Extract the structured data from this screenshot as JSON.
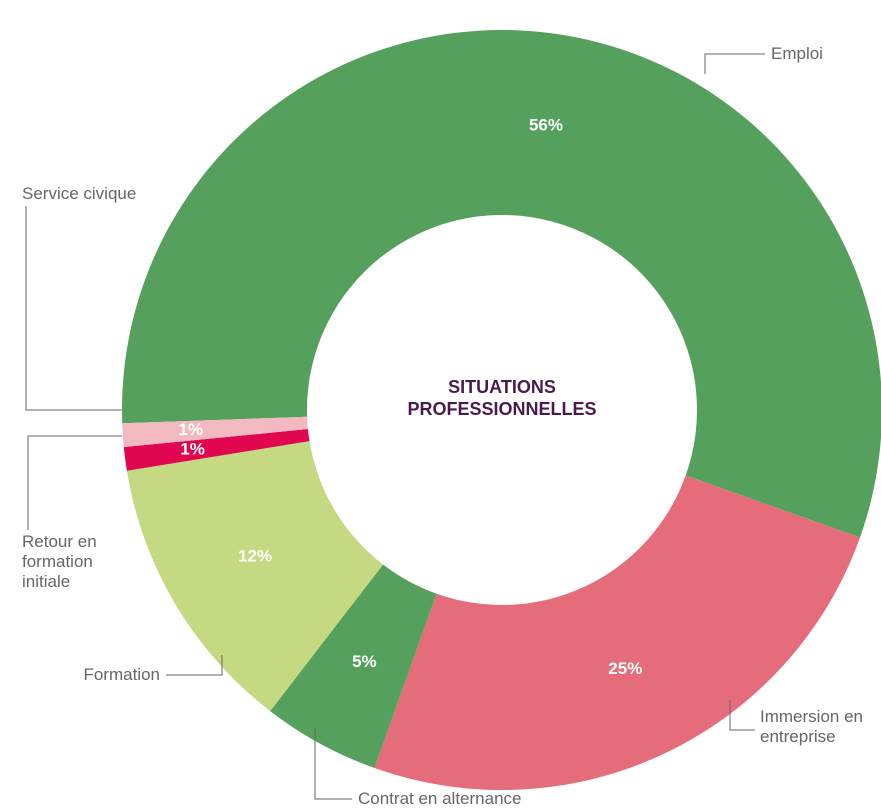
{
  "chart_data": {
    "type": "donut",
    "title": "SITUATIONS PROFESSIONNELLES",
    "categories": [
      "Emploi",
      "Immersion en entreprise",
      "Contrat en alternance",
      "Formation",
      "Retour en formation initiale",
      "Service civique"
    ],
    "values": [
      56,
      25,
      5,
      12,
      1,
      1
    ],
    "value_labels": [
      "56%",
      "25%",
      "5%",
      "12%",
      "1%",
      "1%"
    ],
    "colors": [
      "#55a05c",
      "#e56d7b",
      "#55a05c",
      "#c5d882",
      "#e0064f",
      "#f2b9c0"
    ]
  }
}
